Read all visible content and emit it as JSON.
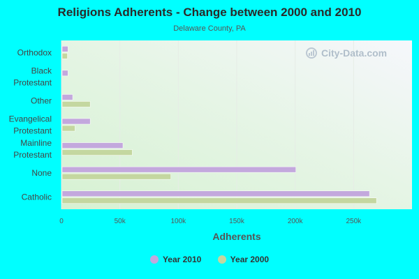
{
  "title": "Religions Adherents - Change between 2000 and 2010",
  "subtitle": "Delaware County, PA",
  "watermark": "City-Data.com",
  "colors": {
    "page_background": "#00ffff",
    "series_2010": "#c3a8dd",
    "series_2000": "#c4d7a0"
  },
  "legend": [
    {
      "name": "Year 2010",
      "color": "#c3a8dd"
    },
    {
      "name": "Year 2000",
      "color": "#c4d7a0"
    }
  ],
  "chart_data": {
    "type": "bar",
    "orientation": "horizontal",
    "categories": [
      "Orthodox",
      "Black Protestant",
      "Other",
      "Evangelical Protestant",
      "Mainline Protestant",
      "None",
      "Catholic"
    ],
    "category_lines": [
      [
        "Orthodox"
      ],
      [
        "Black",
        "Protestant"
      ],
      [
        "Other"
      ],
      [
        "Evangelical",
        "Protestant"
      ],
      [
        "Mainline",
        "Protestant"
      ],
      [
        "None"
      ],
      [
        "Catholic"
      ]
    ],
    "series": [
      {
        "name": "Year 2010",
        "values": [
          5000,
          5000,
          9000,
          24000,
          52000,
          200000,
          263000
        ]
      },
      {
        "name": "Year 2000",
        "values": [
          4500,
          0,
          24000,
          11000,
          60000,
          93000,
          269000
        ]
      }
    ],
    "title": "Religions Adherents - Change between 2000 and 2010",
    "xlabel": "Adherents",
    "ylabel": "",
    "xlim": [
      0,
      300000
    ],
    "xticks": [
      0,
      50000,
      100000,
      150000,
      200000,
      250000
    ],
    "xtick_labels": [
      "0",
      "50k",
      "100k",
      "150k",
      "200k",
      "250k"
    ],
    "grid": true,
    "legend_position": "bottom"
  }
}
